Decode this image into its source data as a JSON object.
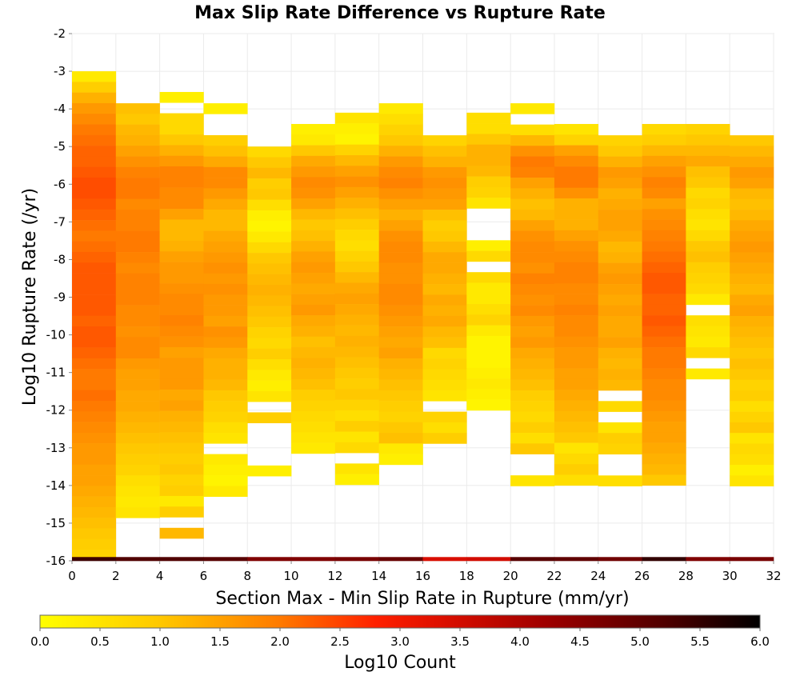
{
  "chart_data": {
    "type": "heatmap",
    "title": "Max Slip Rate Difference vs Rupture Rate",
    "xlabel": "Section Max - Min Slip Rate in Rupture (mm/yr)",
    "ylabel": "Log10 Rupture Rate (/yr)",
    "xlim": [
      0,
      32
    ],
    "ylim": [
      -16,
      -2
    ],
    "x_ticks": [
      "0",
      "2",
      "4",
      "6",
      "8",
      "10",
      "12",
      "14",
      "16",
      "18",
      "20",
      "22",
      "24",
      "26",
      "28",
      "30",
      "32"
    ],
    "y_ticks": [
      "-2",
      "-3",
      "-4",
      "-5",
      "-6",
      "-7",
      "-8",
      "-9",
      "-10",
      "-11",
      "-12",
      "-13",
      "-14",
      "-15",
      "-16"
    ],
    "x_bin_width": 2,
    "y_bin_height": 0.2823,
    "colorbar": {
      "label": "Log10 Count",
      "range": [
        0,
        6
      ],
      "ticks": [
        "0.0",
        "0.5",
        "1.0",
        "1.5",
        "2.0",
        "2.5",
        "3.0",
        "3.5",
        "4.0",
        "4.5",
        "5.0",
        "5.5",
        "6.0"
      ],
      "stops": [
        [
          0,
          "#ffff00"
        ],
        [
          1.0,
          "#ffc800"
        ],
        [
          2.0,
          "#ff7a00"
        ],
        [
          2.8,
          "#ff2000"
        ],
        [
          3.3,
          "#e01000"
        ],
        [
          4.2,
          "#a00000"
        ],
        [
          5.2,
          "#500000"
        ],
        [
          6.0,
          "#000000"
        ]
      ]
    },
    "columns": [
      {
        "x": 1,
        "y_top": -3.0,
        "values": [
          0.4,
          0.9,
          1.3,
          1.6,
          1.8,
          2.0,
          2.1,
          2.2,
          2.2,
          2.3,
          2.4,
          2.4,
          2.3,
          2.2,
          2.1,
          2.0,
          2.1,
          2.2,
          2.3,
          2.3,
          2.3,
          2.3,
          2.3,
          2.2,
          2.3,
          2.3,
          2.2,
          2.1,
          2.0,
          2.0,
          2.1,
          2.0,
          1.9,
          1.8,
          1.7,
          1.6,
          1.6,
          1.5,
          1.5,
          1.4,
          1.3,
          1.2,
          1.1,
          1.0,
          0.9,
          0.8,
          5.4
        ]
      },
      {
        "x": 3,
        "y_top": -3.85,
        "values": [
          1.1,
          1.0,
          1.2,
          1.3,
          1.5,
          1.7,
          1.9,
          2.0,
          2.0,
          1.8,
          1.9,
          1.9,
          2.0,
          2.0,
          1.9,
          1.8,
          1.9,
          1.9,
          1.9,
          1.8,
          1.8,
          1.7,
          1.8,
          1.8,
          1.6,
          1.5,
          1.5,
          1.4,
          1.4,
          1.3,
          1.2,
          1.1,
          1.0,
          0.9,
          0.8,
          0.6,
          0.5,
          0.4,
          0.5,
          5.2
        ]
      },
      {
        "x": 5,
        "y_top": -3.55,
        "values": [
          0.3,
          null,
          0.7,
          0.7,
          1.0,
          1.3,
          1.6,
          1.9,
          1.9,
          1.8,
          1.8,
          1.5,
          1.2,
          1.2,
          1.3,
          1.5,
          1.6,
          1.6,
          1.7,
          1.8,
          1.8,
          1.9,
          1.8,
          1.7,
          1.5,
          1.6,
          1.6,
          1.6,
          1.4,
          1.5,
          1.3,
          1.2,
          1.1,
          1.0,
          0.9,
          1.0,
          0.8,
          0.9,
          0.4,
          0.9,
          null,
          1.2,
          5.2
        ]
      },
      {
        "x": 7,
        "y_top": -3.85,
        "values": [
          0.3,
          null,
          null,
          0.9,
          1.1,
          1.4,
          1.8,
          1.8,
          1.6,
          1.4,
          1.2,
          1.2,
          1.4,
          1.5,
          1.6,
          1.7,
          1.6,
          1.7,
          1.6,
          1.6,
          1.5,
          1.7,
          1.6,
          1.4,
          1.3,
          1.3,
          1.2,
          1.0,
          0.9,
          0.8,
          0.6,
          0.5,
          null,
          0.4,
          0.3,
          0.2,
          0.4,
          5.1
        ]
      },
      {
        "x": 9,
        "y_top": -5.0,
        "values": [
          0.7,
          1.0,
          1.2,
          0.9,
          1.0,
          0.6,
          0.3,
          0.2,
          0.4,
          0.7,
          1.0,
          1.1,
          1.2,
          1.3,
          1.2,
          1.1,
          1.0,
          0.8,
          0.7,
          0.9,
          0.6,
          0.4,
          0.3,
          0.5,
          null,
          0.9,
          null,
          null,
          null,
          null,
          0.3,
          null,
          4.6
        ]
      },
      {
        "x": 11,
        "y_top": -4.4,
        "values": [
          0.3,
          0.4,
          1.0,
          1.4,
          1.6,
          1.8,
          1.7,
          1.5,
          1.2,
          1.0,
          1.1,
          1.3,
          1.5,
          1.6,
          1.5,
          1.4,
          1.5,
          1.6,
          1.4,
          1.3,
          1.1,
          1.2,
          1.3,
          1.2,
          1.1,
          0.9,
          0.8,
          0.7,
          0.6,
          0.5,
          0.4,
          null,
          null,
          null,
          null,
          null,
          null,
          4.6
        ]
      },
      {
        "x": 13,
        "y_top": -4.1,
        "values": [
          0.5,
          0.3,
          0.2,
          0.8,
          1.2,
          1.5,
          1.7,
          1.5,
          1.3,
          1.1,
          0.9,
          0.7,
          0.6,
          0.8,
          1.0,
          1.2,
          1.4,
          1.5,
          1.4,
          1.3,
          1.2,
          1.3,
          1.2,
          1.1,
          1.0,
          0.9,
          1.0,
          0.8,
          0.6,
          0.9,
          0.5,
          0.7,
          null,
          0.5,
          0.3,
          null,
          null,
          null,
          null,
          4.7
        ]
      },
      {
        "x": 15,
        "y_top": -3.85,
        "values": [
          0.4,
          0.6,
          0.8,
          1.0,
          1.3,
          1.6,
          1.8,
          1.9,
          1.7,
          1.5,
          1.3,
          1.5,
          1.7,
          1.8,
          1.8,
          1.7,
          1.7,
          1.8,
          1.8,
          1.7,
          1.6,
          1.5,
          1.4,
          1.5,
          1.3,
          1.2,
          1.1,
          1.0,
          0.9,
          0.8,
          1.0,
          1.1,
          0.4,
          0.3,
          4.9
        ]
      },
      {
        "x": 17,
        "y_top": -4.7,
        "values": [
          0.8,
          1.1,
          1.3,
          1.6,
          1.7,
          1.6,
          1.5,
          1.1,
          0.9,
          1.0,
          1.2,
          1.4,
          1.4,
          1.3,
          1.2,
          1.4,
          1.3,
          1.4,
          1.2,
          1.1,
          0.7,
          0.8,
          0.7,
          0.6,
          0.5,
          null,
          0.8,
          0.6,
          0.9,
          null,
          3.4
        ]
      },
      {
        "x": 19,
        "y_top": -4.1,
        "values": [
          0.6,
          0.6,
          1.0,
          1.3,
          1.3,
          1.2,
          0.9,
          0.8,
          0.5,
          null,
          null,
          null,
          0.3,
          0.7,
          null,
          0.7,
          0.4,
          0.4,
          0.6,
          0.8,
          0.4,
          0.2,
          0.2,
          0.2,
          0.3,
          0.4,
          0.3,
          0.2,
          null,
          null,
          null,
          null,
          null,
          null,
          null,
          null,
          null,
          null,
          null,
          null,
          3.5
        ]
      },
      {
        "x": 21,
        "y_top": -3.85,
        "values": [
          0.4,
          null,
          0.6,
          1.2,
          1.7,
          2.0,
          1.9,
          1.5,
          1.3,
          1.1,
          1.2,
          1.5,
          1.7,
          1.8,
          1.8,
          1.7,
          1.9,
          1.8,
          1.7,
          1.8,
          1.6,
          1.5,
          1.6,
          1.4,
          1.3,
          1.2,
          1.1,
          0.9,
          0.8,
          0.7,
          0.9,
          0.6,
          1.0,
          null,
          null,
          0.5,
          null,
          5.1
        ]
      },
      {
        "x": 23,
        "y_top": -4.4,
        "values": [
          0.5,
          0.8,
          1.5,
          1.8,
          2.0,
          2.0,
          1.7,
          1.3,
          1.3,
          1.3,
          1.5,
          1.7,
          1.8,
          1.9,
          1.9,
          1.8,
          1.8,
          1.9,
          1.8,
          1.8,
          1.7,
          1.6,
          1.6,
          1.5,
          1.5,
          1.4,
          1.3,
          1.2,
          1.1,
          1.0,
          0.5,
          0.7,
          0.9,
          0.6,
          5.0
        ]
      },
      {
        "x": 25,
        "y_top": -4.7,
        "values": [
          0.8,
          1.0,
          1.3,
          1.6,
          1.5,
          1.3,
          1.4,
          1.5,
          1.5,
          1.4,
          1.2,
          1.3,
          1.5,
          1.6,
          1.5,
          1.4,
          1.5,
          1.4,
          1.4,
          1.5,
          1.3,
          1.2,
          1.3,
          1.2,
          null,
          0.7,
          null,
          0.5,
          0.9,
          0.8,
          null,
          null,
          0.6,
          null,
          null,
          4.8
        ]
      },
      {
        "x": 27,
        "y_top": -4.4,
        "values": [
          0.7,
          0.9,
          1.2,
          1.5,
          1.7,
          1.9,
          1.8,
          1.5,
          1.7,
          1.8,
          1.9,
          2.0,
          2.1,
          2.2,
          2.3,
          2.3,
          2.2,
          2.2,
          2.3,
          2.2,
          2.1,
          2.0,
          2.0,
          1.9,
          1.8,
          1.8,
          1.7,
          1.6,
          1.5,
          1.5,
          1.4,
          1.3,
          1.2,
          1.0,
          5.5
        ]
      },
      {
        "x": 29,
        "y_top": -4.4,
        "values": [
          0.8,
          1.0,
          1.2,
          1.4,
          1.1,
          1.0,
          0.7,
          0.8,
          0.6,
          0.5,
          0.7,
          1.0,
          1.1,
          0.9,
          0.8,
          0.7,
          0.4,
          null,
          0.6,
          0.5,
          0.4,
          0.7,
          null,
          0.4,
          null,
          null,
          null,
          null,
          null,
          null,
          null,
          null,
          null,
          null,
          4.6
        ]
      },
      {
        "x": 31,
        "y_top": -4.7,
        "values": [
          1.0,
          1.2,
          1.4,
          1.6,
          1.5,
          1.2,
          1.1,
          1.2,
          1.4,
          1.5,
          1.6,
          1.5,
          1.4,
          1.3,
          1.2,
          1.4,
          1.5,
          1.3,
          1.2,
          1.1,
          1.0,
          1.1,
          1.0,
          0.8,
          0.9,
          0.6,
          0.8,
          1.0,
          0.5,
          0.7,
          0.6,
          0.3,
          0.5,
          4.7
        ]
      }
    ]
  }
}
